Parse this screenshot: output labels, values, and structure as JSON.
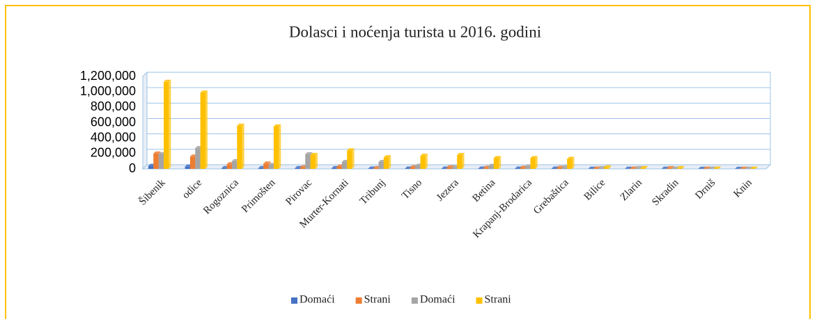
{
  "chart_data": {
    "type": "bar",
    "title": "Dolasci i noćenja turista u 2016. godini",
    "categories": [
      "Šibenik",
      "odice",
      "Rogoznica",
      "Primošten",
      "Pirovac",
      "Murter-Kornati",
      "Tribunj",
      "Tisno",
      "Jezera",
      "Betina",
      "Krapanj-Brodarica",
      "Grebaštica",
      "Bilice",
      "Zlarin",
      "Skradin",
      "Drniš",
      "Knin"
    ],
    "series": [
      {
        "name": "Domaći",
        "color": "#4472c4",
        "values": [
          40000,
          30000,
          10000,
          10000,
          10000,
          10000,
          5000,
          5000,
          5000,
          5000,
          5000,
          5000,
          2000,
          2000,
          2000,
          1000,
          1000
        ]
      },
      {
        "name": "Strani",
        "color": "#ed7d31",
        "values": [
          200000,
          160000,
          60000,
          70000,
          20000,
          30000,
          10000,
          20000,
          20000,
          15000,
          15000,
          15000,
          5000,
          5000,
          10000,
          3000,
          2000
        ]
      },
      {
        "name": "Domaći",
        "color": "#a5a5a5",
        "values": [
          190000,
          270000,
          100000,
          50000,
          190000,
          90000,
          90000,
          40000,
          20000,
          40000,
          30000,
          20000,
          10000,
          10000,
          5000,
          3000,
          2000
        ]
      },
      {
        "name": "Strani",
        "color": "#ffc000",
        "values": [
          1130000,
          990000,
          560000,
          550000,
          180000,
          240000,
          150000,
          170000,
          180000,
          140000,
          140000,
          130000,
          20000,
          10000,
          10000,
          5000,
          3000
        ]
      }
    ],
    "ylim": [
      0,
      1200000
    ],
    "yticks": [
      0,
      {
        "value": 200000,
        "label": "200,000"
      },
      {
        "value": 400000,
        "label": "400,000"
      },
      {
        "value": 600000,
        "label": "600,000"
      },
      {
        "value": 800000,
        "label": "800,000"
      },
      {
        "value": 1000000,
        "label": "1,000,000"
      },
      {
        "value": 1200000,
        "label": "1,200,000"
      }
    ],
    "grid": true,
    "legend": "bottom"
  }
}
